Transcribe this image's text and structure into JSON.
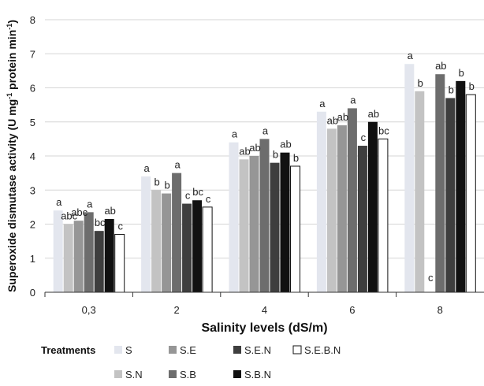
{
  "chart_data": {
    "type": "bar",
    "xlabel": "Salinity levels (dS/m)",
    "ylabel": "Superoxide dismutase activity (U mg-1 protein min-1)",
    "ylim": [
      0,
      8
    ],
    "yticks": [
      0,
      1,
      2,
      3,
      4,
      5,
      6,
      7,
      8
    ],
    "grid": "horizontal",
    "legend_title": "Treatments",
    "legend_position": "bottom",
    "categories": [
      "0,3",
      "2",
      "4",
      "6",
      "8"
    ],
    "series": [
      {
        "name": "S",
        "color": "#e3e6ee",
        "values": [
          2.4,
          3.4,
          4.4,
          5.3,
          6.7
        ],
        "labels": [
          "a",
          "a",
          "a",
          "a",
          "a"
        ]
      },
      {
        "name": "S.N",
        "color": "#c3c3c3",
        "values": [
          2.0,
          3.0,
          3.9,
          4.8,
          5.9
        ],
        "labels": [
          "abc",
          "b",
          "ab",
          "ab",
          "b"
        ]
      },
      {
        "name": "S.E",
        "color": "#969696",
        "values": [
          2.1,
          2.9,
          4.0,
          4.9,
          0.0
        ],
        "labels": [
          "abc",
          "b",
          "ab",
          "ab",
          "c"
        ]
      },
      {
        "name": "S.B",
        "color": "#6d6d6d",
        "values": [
          2.35,
          3.5,
          4.5,
          5.4,
          6.4
        ],
        "labels": [
          "a",
          "a",
          "a",
          "a",
          "ab"
        ]
      },
      {
        "name": "S.E.N",
        "color": "#3e3e3e",
        "values": [
          1.8,
          2.6,
          3.8,
          4.3,
          5.7
        ],
        "labels": [
          "bc",
          "c",
          "b",
          "c",
          "b"
        ]
      },
      {
        "name": "S.B.N",
        "color": "#111111",
        "values": [
          2.15,
          2.7,
          4.1,
          5.0,
          6.2
        ],
        "labels": [
          "ab",
          "bc",
          "ab",
          "ab",
          "b"
        ]
      },
      {
        "name": "S.E.B.N",
        "color": "#ffffff",
        "values": [
          1.7,
          2.5,
          3.7,
          4.5,
          5.8
        ],
        "labels": [
          "c",
          "c",
          "b",
          "bc",
          "b"
        ]
      }
    ]
  }
}
